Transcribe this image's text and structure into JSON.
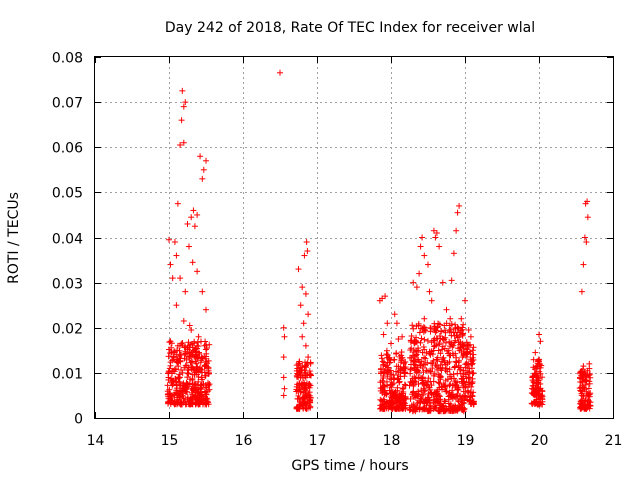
{
  "chart_data": {
    "type": "scatter",
    "title": "Day 242 of 2018, Rate Of TEC Index for receiver wlal",
    "xlabel": "GPS time / hours",
    "ylabel": "ROTI / TECUs",
    "xlim": [
      14,
      21
    ],
    "ylim": [
      0,
      0.08
    ],
    "x_ticks": [
      "14",
      "15",
      "16",
      "17",
      "18",
      "19",
      "20",
      "21"
    ],
    "y_ticks": [
      "0",
      "0.01",
      "0.02",
      "0.03",
      "0.04",
      "0.05",
      "0.06",
      "0.07",
      "0.08"
    ],
    "grid": true,
    "marker": "+",
    "color": "#ff0000",
    "series": [
      {
        "name": "ROTI",
        "points": [
          [
            15.0,
            0.0395
          ],
          [
            15.02,
            0.034
          ],
          [
            15.05,
            0.031
          ],
          [
            15.08,
            0.039
          ],
          [
            15.1,
            0.036
          ],
          [
            15.12,
            0.0475
          ],
          [
            15.15,
            0.0605
          ],
          [
            15.17,
            0.066
          ],
          [
            15.18,
            0.0725
          ],
          [
            15.2,
            0.069
          ],
          [
            15.22,
            0.07
          ],
          [
            15.2,
            0.061
          ],
          [
            15.25,
            0.043
          ],
          [
            15.27,
            0.038
          ],
          [
            15.3,
            0.0445
          ],
          [
            15.33,
            0.046
          ],
          [
            15.35,
            0.0425
          ],
          [
            15.38,
            0.045
          ],
          [
            15.42,
            0.058
          ],
          [
            15.45,
            0.053
          ],
          [
            15.47,
            0.055
          ],
          [
            15.5,
            0.057
          ],
          [
            15.1,
            0.025
          ],
          [
            15.15,
            0.031
          ],
          [
            15.22,
            0.028
          ],
          [
            15.28,
            0.0205
          ],
          [
            15.32,
            0.0345
          ],
          [
            15.38,
            0.0325
          ],
          [
            15.45,
            0.028
          ],
          [
            15.5,
            0.024
          ],
          [
            15.2,
            0.0215
          ],
          [
            15.3,
            0.0195
          ],
          [
            15.4,
            0.018
          ],
          [
            15.02,
            0.017
          ],
          [
            15.12,
            0.016
          ],
          [
            15.25,
            0.0155
          ],
          [
            15.48,
            0.016
          ],
          [
            16.5,
            0.0765
          ],
          [
            16.55,
            0.02
          ],
          [
            16.56,
            0.018
          ],
          [
            16.55,
            0.0135
          ],
          [
            16.55,
            0.009
          ],
          [
            16.56,
            0.0065
          ],
          [
            16.55,
            0.005
          ],
          [
            16.75,
            0.033
          ],
          [
            16.8,
            0.029
          ],
          [
            16.83,
            0.036
          ],
          [
            16.86,
            0.039
          ],
          [
            16.87,
            0.037
          ],
          [
            16.85,
            0.0275
          ],
          [
            16.88,
            0.023
          ],
          [
            16.82,
            0.021
          ],
          [
            16.78,
            0.025
          ],
          [
            16.8,
            0.018
          ],
          [
            16.85,
            0.016
          ],
          [
            16.88,
            0.0135
          ],
          [
            16.75,
            0.012
          ],
          [
            16.9,
            0.0095
          ],
          [
            17.85,
            0.026
          ],
          [
            17.88,
            0.0265
          ],
          [
            17.92,
            0.027
          ],
          [
            17.95,
            0.021
          ],
          [
            17.9,
            0.0185
          ],
          [
            18.0,
            0.0165
          ],
          [
            18.05,
            0.023
          ],
          [
            18.08,
            0.021
          ],
          [
            18.1,
            0.0175
          ],
          [
            18.15,
            0.018
          ],
          [
            18.3,
            0.03
          ],
          [
            18.35,
            0.029
          ],
          [
            18.38,
            0.032
          ],
          [
            18.4,
            0.038
          ],
          [
            18.42,
            0.04
          ],
          [
            18.45,
            0.036
          ],
          [
            18.5,
            0.034
          ],
          [
            18.52,
            0.028
          ],
          [
            18.55,
            0.026
          ],
          [
            18.58,
            0.0415
          ],
          [
            18.6,
            0.04
          ],
          [
            18.62,
            0.041
          ],
          [
            18.65,
            0.038
          ],
          [
            18.7,
            0.03
          ],
          [
            18.75,
            0.024
          ],
          [
            18.8,
            0.022
          ],
          [
            18.82,
            0.0305
          ],
          [
            18.85,
            0.0365
          ],
          [
            18.88,
            0.0415
          ],
          [
            18.9,
            0.0455
          ],
          [
            18.92,
            0.047
          ],
          [
            18.95,
            0.022
          ],
          [
            19.0,
            0.026
          ],
          [
            19.05,
            0.0195
          ],
          [
            19.08,
            0.018
          ],
          [
            18.45,
            0.022
          ],
          [
            18.6,
            0.019
          ],
          [
            18.72,
            0.0205
          ],
          [
            19.95,
            0.0145
          ],
          [
            20.0,
            0.0185
          ],
          [
            20.02,
            0.017
          ],
          [
            20.0,
            0.013
          ],
          [
            20.58,
            0.028
          ],
          [
            20.6,
            0.034
          ],
          [
            20.62,
            0.04
          ],
          [
            20.63,
            0.0475
          ],
          [
            20.65,
            0.048
          ],
          [
            20.66,
            0.0445
          ],
          [
            20.64,
            0.039
          ],
          [
            20.6,
            0.0115
          ],
          [
            20.68,
            0.012
          ]
        ]
      }
    ],
    "dense_clusters": [
      {
        "x_range": [
          14.98,
          15.55
        ],
        "y_range": [
          0.003,
          0.017
        ]
      },
      {
        "x_range": [
          16.72,
          16.92
        ],
        "y_range": [
          0.002,
          0.013
        ]
      },
      {
        "x_range": [
          17.85,
          18.2
        ],
        "y_range": [
          0.002,
          0.015
        ]
      },
      {
        "x_range": [
          18.25,
          19.0
        ],
        "y_range": [
          0.0015,
          0.021
        ]
      },
      {
        "x_range": [
          19.0,
          19.12
        ],
        "y_range": [
          0.003,
          0.017
        ]
      },
      {
        "x_range": [
          19.9,
          20.05
        ],
        "y_range": [
          0.003,
          0.013
        ]
      },
      {
        "x_range": [
          20.55,
          20.7
        ],
        "y_range": [
          0.002,
          0.011
        ]
      }
    ]
  }
}
